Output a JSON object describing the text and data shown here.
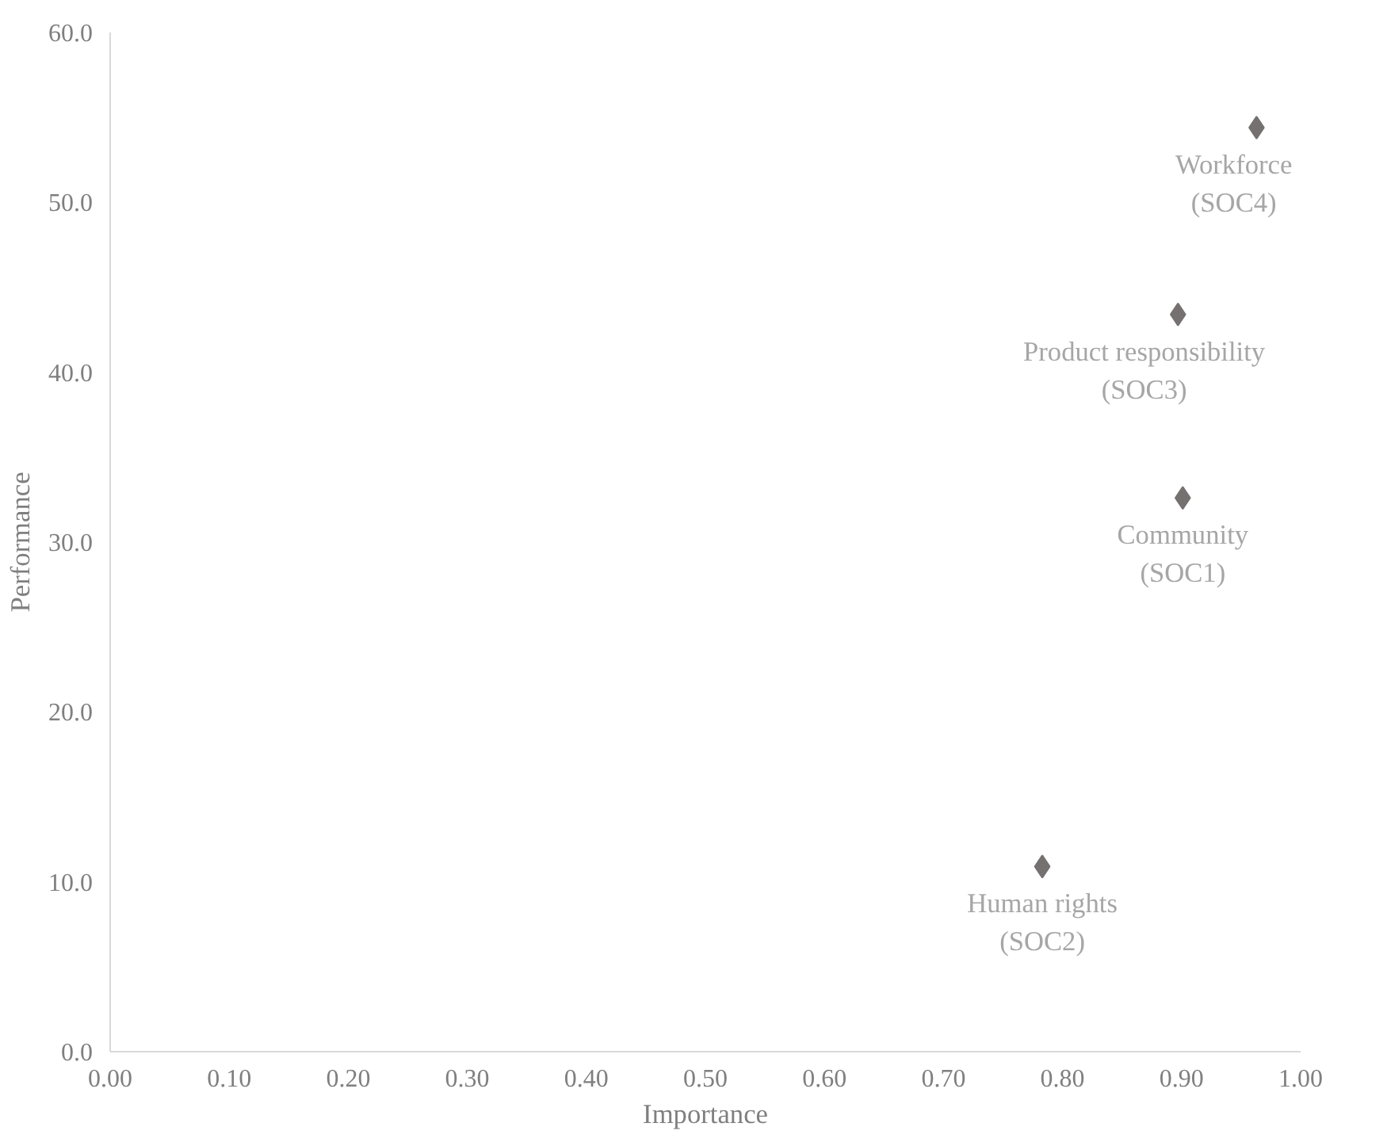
{
  "chart_data": {
    "type": "scatter",
    "xlabel": "Importance",
    "ylabel": "Performance",
    "x": [
      0.963,
      0.897,
      0.901,
      0.783
    ],
    "series": [
      {
        "color": "#767171",
        "values": [
          54.4,
          43.4,
          32.6,
          10.9
        ]
      }
    ],
    "marker": "diamond",
    "xlim": [
      0,
      1
    ],
    "ylim": [
      0,
      60
    ],
    "xticks": [
      {
        "value": 0,
        "label": "0.00"
      },
      {
        "value": 0.1,
        "label": "0.10"
      },
      {
        "value": 0.2,
        "label": "0.20"
      },
      {
        "value": 0.3,
        "label": "0.30"
      },
      {
        "value": 0.4,
        "label": "0.40"
      },
      {
        "value": 0.5,
        "label": "0.50"
      },
      {
        "value": 0.6,
        "label": "0.60"
      },
      {
        "value": 0.7,
        "label": "0.70"
      },
      {
        "value": 0.8,
        "label": "0.80"
      },
      {
        "value": 0.9,
        "label": "0.90"
      },
      {
        "value": 1,
        "label": "1.00"
      }
    ],
    "yticks": [
      {
        "value": 0,
        "label": "0.0"
      },
      {
        "value": 10,
        "label": "10.0"
      },
      {
        "value": 20,
        "label": "20.0"
      },
      {
        "value": 30,
        "label": "30.0"
      },
      {
        "value": 40,
        "label": "40.0"
      },
      {
        "value": 50,
        "label": "50.0"
      },
      {
        "value": 60,
        "label": "60.0"
      }
    ],
    "grid": false,
    "annotations": [
      {
        "text": "Workforce\n(SOC4)",
        "x": 0.963,
        "y": 54.4
      },
      {
        "text": "Product responsibility\n(SOC3)",
        "x": 0.897,
        "y": 43.4
      },
      {
        "text": "Community\n(SOC1)",
        "x": 0.901,
        "y": 32.6
      },
      {
        "text": "Human rights\n(SOC2)",
        "x": 0.783,
        "y": 10.9
      }
    ]
  }
}
